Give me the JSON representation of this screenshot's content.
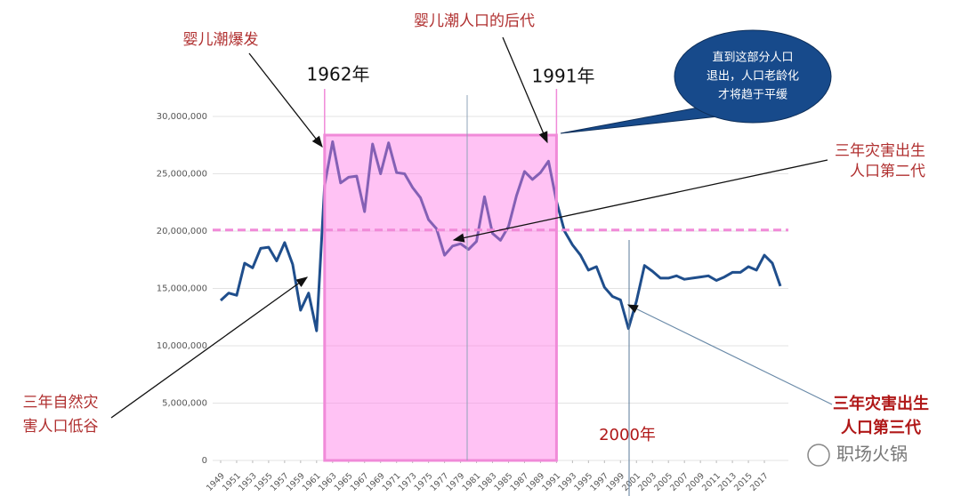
{
  "chart_data": {
    "type": "line",
    "x": [
      1949,
      1950,
      1951,
      1952,
      1953,
      1954,
      1955,
      1956,
      1957,
      1958,
      1959,
      1960,
      1961,
      1962,
      1963,
      1964,
      1965,
      1966,
      1967,
      1968,
      1969,
      1970,
      1971,
      1972,
      1973,
      1974,
      1975,
      1976,
      1977,
      1978,
      1979,
      1980,
      1981,
      1982,
      1983,
      1984,
      1985,
      1986,
      1987,
      1988,
      1989,
      1990,
      1991,
      1992,
      1993,
      1994,
      1995,
      1996,
      1997,
      1998,
      1999,
      2000,
      2001,
      2002,
      2003,
      2004,
      2005,
      2006,
      2007,
      2008,
      2009,
      2010,
      2011,
      2012,
      2013,
      2014,
      2015,
      2016,
      2017,
      2018,
      2019
    ],
    "series": [
      {
        "color": "#1f4e8c",
        "values": [
          13950000,
          14600000,
          14400000,
          17200000,
          16800000,
          18500000,
          18600000,
          17400000,
          19000000,
          17100000,
          13100000,
          14600000,
          11300000,
          24000000,
          27800000,
          24200000,
          24700000,
          24800000,
          21700000,
          27600000,
          25000000,
          27700000,
          25100000,
          25000000,
          23800000,
          22900000,
          21000000,
          20200000,
          17900000,
          18700000,
          18900000,
          18400000,
          19100000,
          23000000,
          19800000,
          19200000,
          20400000,
          23100000,
          25200000,
          24500000,
          25100000,
          26100000,
          22600000,
          20000000,
          18800000,
          17900000,
          16600000,
          16900000,
          15100000,
          14300000,
          14000000,
          11500000,
          13900000,
          17000000,
          16500000,
          15900000,
          15900000,
          16100000,
          15800000,
          15900000,
          16000000,
          16100000,
          15700000,
          16000000,
          16400000,
          16400000,
          16900000,
          16600000,
          17900000,
          17200000,
          15200000
        ]
      }
    ],
    "xlim": [
      1948,
      2020
    ],
    "xticks": [
      1949,
      1951,
      1953,
      1955,
      1957,
      1959,
      1961,
      1963,
      1965,
      1967,
      1969,
      1971,
      1973,
      1975,
      1977,
      1979,
      1981,
      1983,
      1985,
      1987,
      1989,
      1991,
      1993,
      1995,
      1997,
      1999,
      2001,
      2003,
      2005,
      2007,
      2009,
      2011,
      2013,
      2015,
      2017
    ],
    "ylim": [
      0,
      30000000
    ],
    "yticks": [
      0,
      {
        "value": 5000000,
        "label": "5,000,000"
      },
      {
        "value": 10000000,
        "label": "10,000,000"
      },
      {
        "value": 15000000,
        "label": "15,000,000"
      },
      {
        "value": 20000000,
        "label": "20,000,000"
      },
      {
        "value": 25000000,
        "label": "25,000,000"
      },
      {
        "value": 30000000,
        "label": "30,000,000"
      }
    ],
    "grid": true,
    "shaded_range": [
      1962,
      1991
    ],
    "dashed_line": 20100000,
    "annotations": [
      {
        "text": [
          "婴儿潮爆发"
        ]
      },
      {
        "text": [
          "婴儿潮人口的后代"
        ]
      },
      {
        "text": [
          "1962年"
        ]
      },
      {
        "text": [
          "1991年"
        ]
      },
      {
        "text": [
          "直到这部分人口",
          "退出，人口老龄化",
          "才将趋于平缓"
        ]
      },
      {
        "text": [
          "三年灾害出生",
          "人口第二代"
        ]
      },
      {
        "text": [
          "三年自然灾",
          "害人口低谷"
        ]
      },
      {
        "text": [
          "三年灾害出生",
          "人口第三代"
        ]
      },
      {
        "text": [
          "2000年"
        ]
      }
    ],
    "watermark": "职场火锅"
  }
}
